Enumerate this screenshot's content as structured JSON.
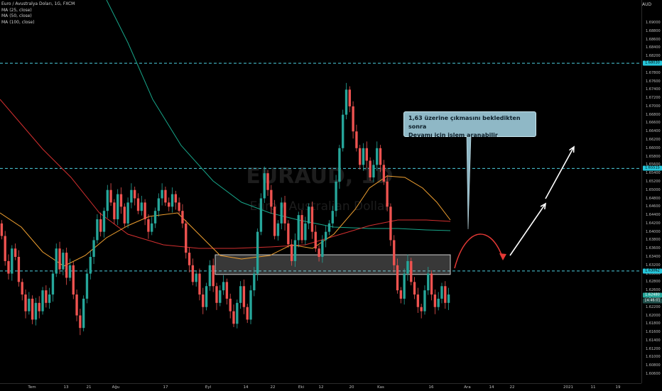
{
  "legend": {
    "symbol_line": "Euro / Avustralya Doları, 1G, FXCM",
    "ma25": "MA (25, close)",
    "ma50": "MA (50, close)",
    "ma100": "MA (100, close)"
  },
  "watermark": {
    "symbol": "EURAUD, 1D",
    "description": "Euro / Australian Dollar"
  },
  "axis": {
    "currency": "AUD",
    "price_ticks": [
      "1.69000",
      "1.68800",
      "1.68600",
      "1.68400",
      "1.68200",
      "1.68000",
      "1.67800",
      "1.67600",
      "1.67400",
      "1.67200",
      "1.67000",
      "1.66800",
      "1.66600",
      "1.66400",
      "1.66200",
      "1.66000",
      "1.65800",
      "1.65600",
      "1.65400",
      "1.65200",
      "1.65000",
      "1.64800",
      "1.64600",
      "1.64400",
      "1.64200",
      "1.64000",
      "1.63800",
      "1.63600",
      "1.63400",
      "1.63200",
      "1.63000",
      "1.62800",
      "1.62600",
      "1.62400",
      "1.62200",
      "1.62000",
      "1.61800",
      "1.61600",
      "1.61400",
      "1.61200",
      "1.61000",
      "1.60800",
      "1.60600"
    ],
    "price_tags": {
      "upper_line": "1.68030",
      "middle_line": "1.65515",
      "lower_line": "1.63062",
      "last_price": "1.62480",
      "countdown": "14:46:01"
    },
    "time_ticks": [
      "Tem",
      "13",
      "21",
      "Ağu",
      "17",
      "Eyl",
      "14",
      "22",
      "Eki",
      "12",
      "20",
      "Kas",
      "16",
      "Ara",
      "14",
      "22",
      "2021",
      "11",
      "19"
    ]
  },
  "colors": {
    "up": "#26a69a",
    "down": "#ef5350",
    "ma25": "#f0a030",
    "ma50": "#d32f2f",
    "ma100": "#17a589",
    "dashed_lines": "#4dd0e1",
    "note_bg": "#8fb8c6"
  },
  "annotation": {
    "line1": "1,63 üzerine çıkmasını bekledikten sonra",
    "line2": "Devamı için işlem aranabilir"
  },
  "chart_data": {
    "type": "candlestick",
    "symbol": "EURAUD",
    "interval": "1D",
    "horizontal_lines": [
      1.6803,
      1.65515,
      1.63062
    ],
    "support_zone": [
      1.6298,
      1.6345
    ],
    "last_price": 1.6248,
    "ylim": [
      1.605,
      1.691
    ]
  }
}
